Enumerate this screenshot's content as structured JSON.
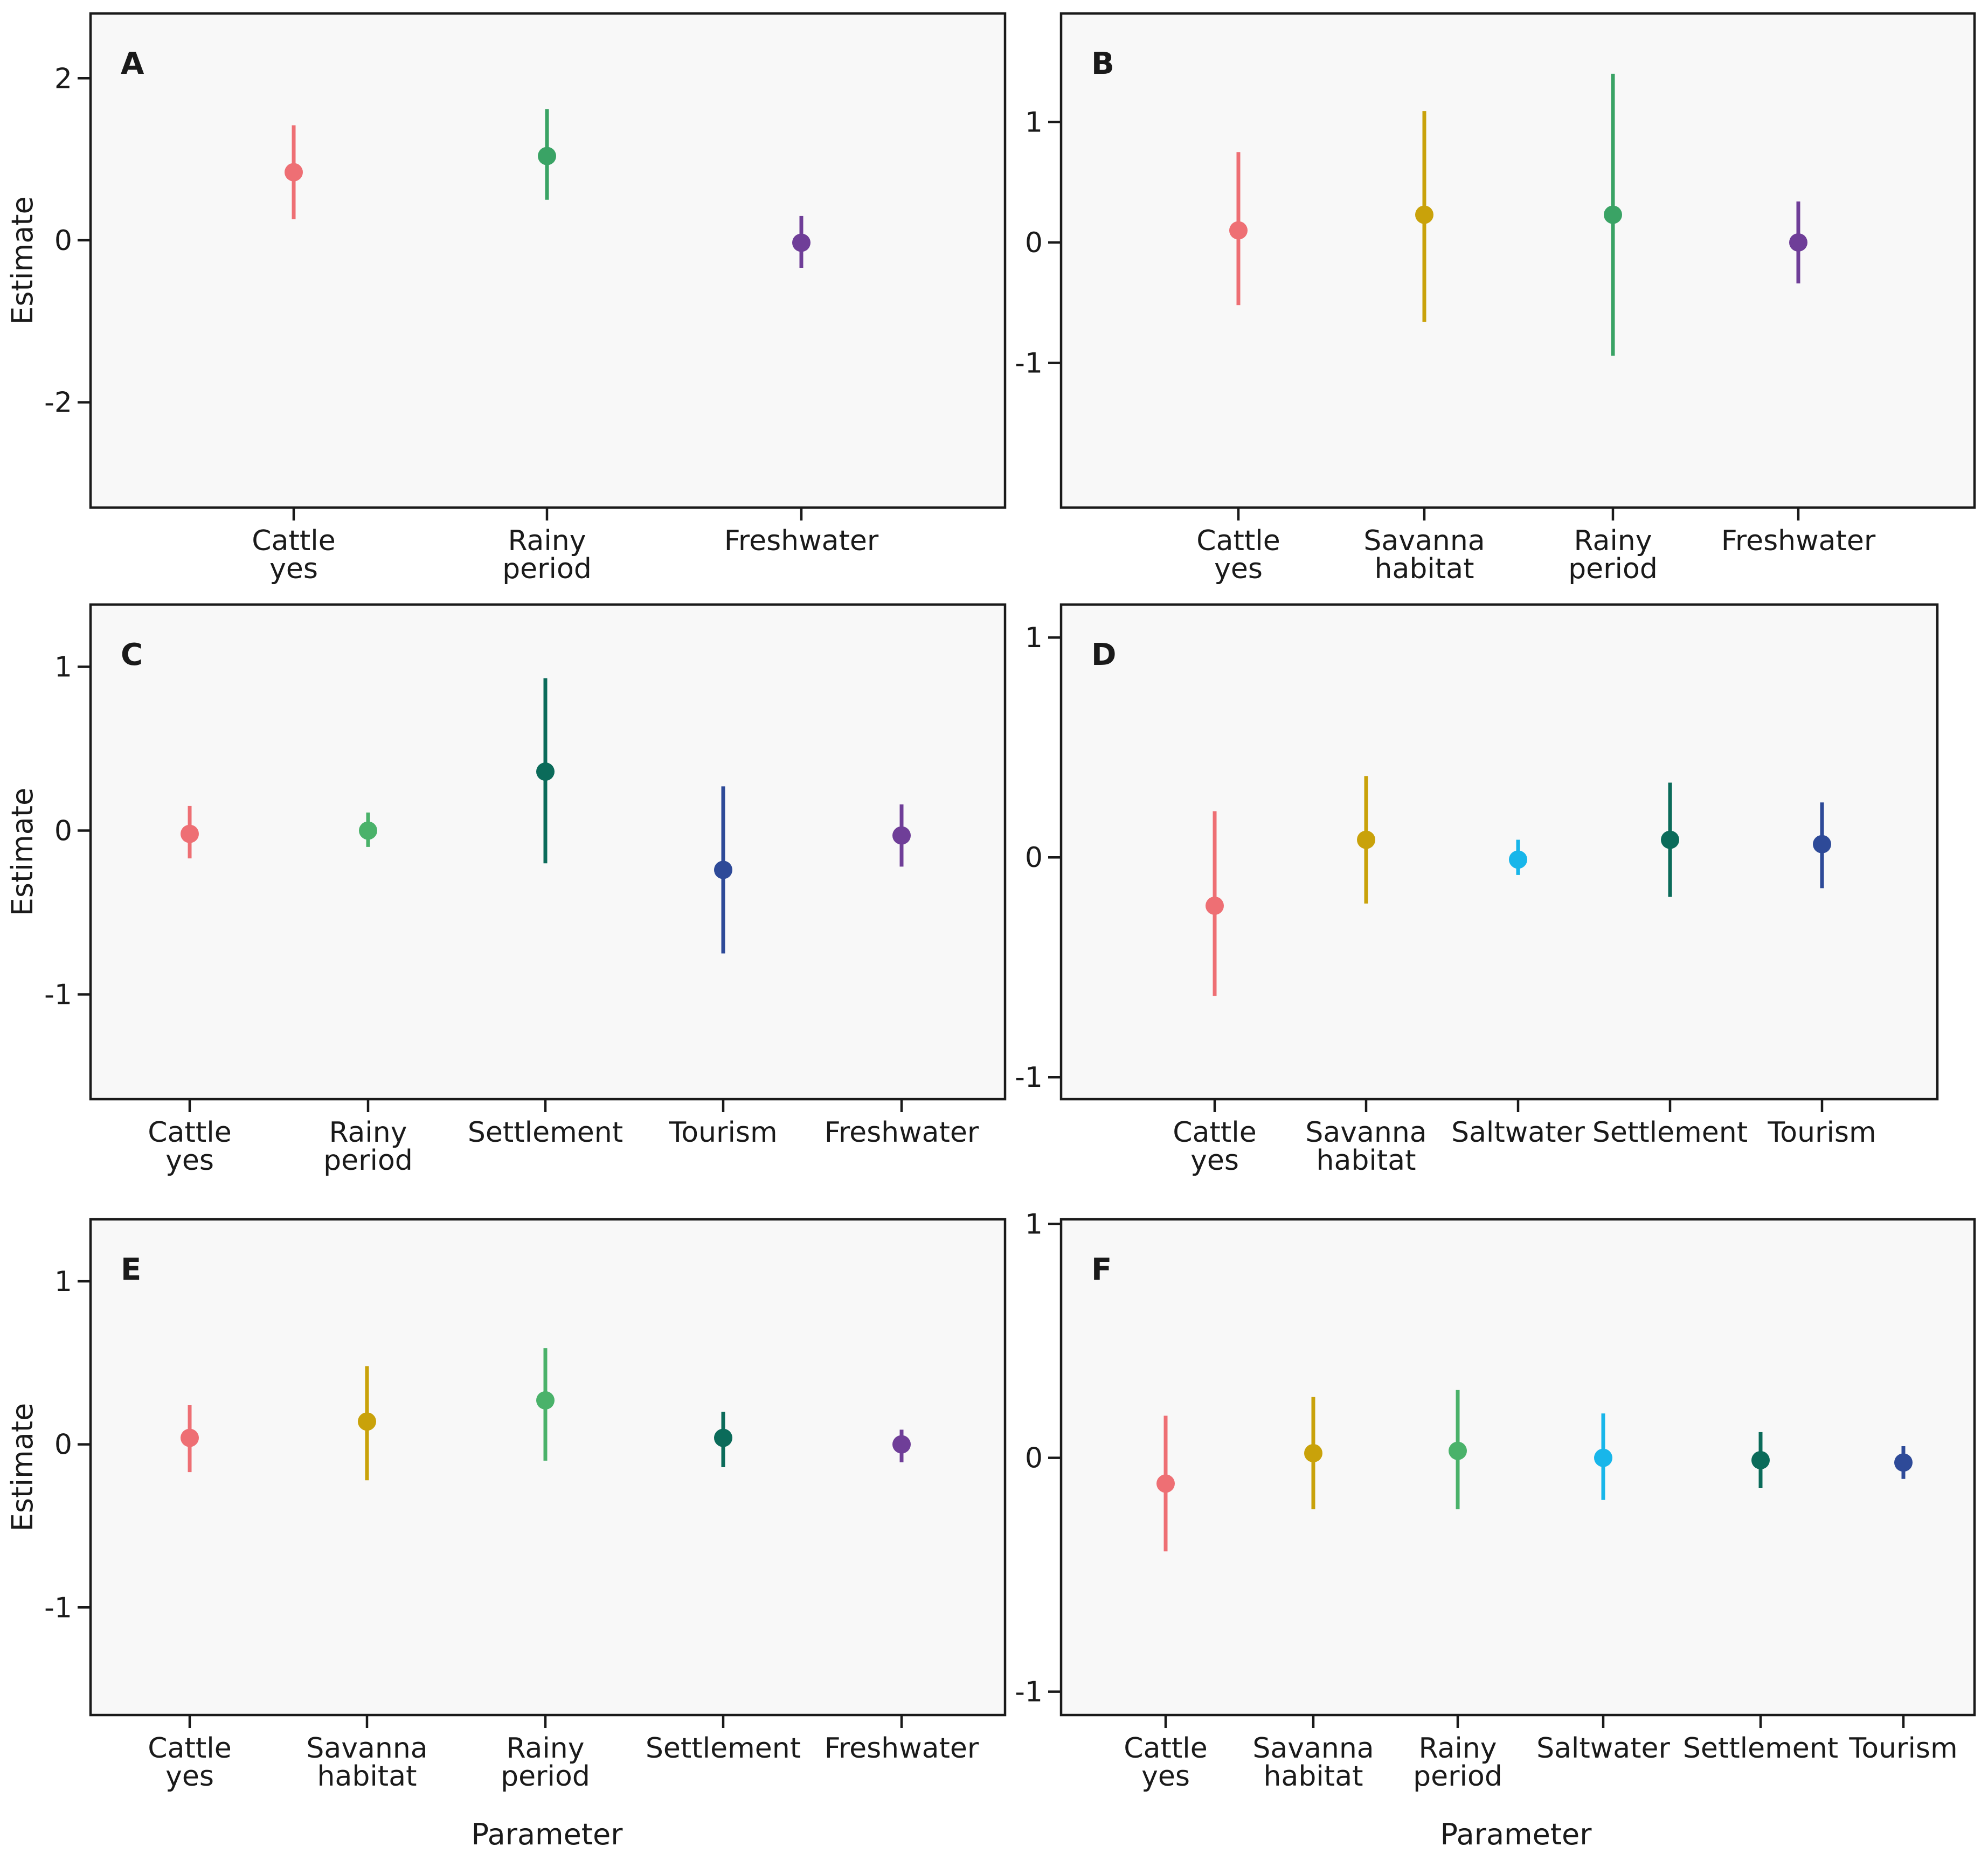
{
  "chart_data": [
    {
      "type": "scatter",
      "panel": "A",
      "ylabel": "Estimate",
      "xlabel": "",
      "ylim": [
        -3.3,
        2.8
      ],
      "yticks": [
        {
          "value": 2,
          "label": "2"
        },
        {
          "value": 0,
          "label": "0"
        },
        {
          "value": -2,
          "label": "-2"
        }
      ],
      "points": [
        {
          "label": [
            "Cattle",
            "yes"
          ],
          "estimate": 0.84,
          "lower": 0.26,
          "upper": 1.42,
          "color": "#ee6f74"
        },
        {
          "label": [
            "Rainy",
            "period"
          ],
          "estimate": 1.04,
          "lower": 0.5,
          "upper": 1.62,
          "color": "#3aa365"
        },
        {
          "label": [
            "Freshwater"
          ],
          "estimate": -0.03,
          "lower": -0.34,
          "upper": 0.3,
          "color": "#6f3e98"
        }
      ]
    },
    {
      "type": "scatter",
      "panel": "B",
      "ylabel": "",
      "xlabel": "",
      "ylim": [
        -2.2,
        1.9
      ],
      "yticks": [
        {
          "value": 1,
          "label": "1"
        },
        {
          "value": 0,
          "label": "0"
        },
        {
          "value": -1,
          "label": "-1"
        }
      ],
      "points": [
        {
          "label": [
            "Cattle",
            "yes"
          ],
          "estimate": 0.1,
          "lower": -0.52,
          "upper": 0.75,
          "color": "#ee6f74"
        },
        {
          "label": [
            "Savanna",
            "habitat"
          ],
          "estimate": 0.23,
          "lower": -0.66,
          "upper": 1.09,
          "color": "#c9a20a"
        },
        {
          "label": [
            "Rainy",
            "period"
          ],
          "estimate": 0.23,
          "lower": -0.94,
          "upper": 1.4,
          "color": "#3aa365"
        },
        {
          "label": [
            "Freshwater"
          ],
          "estimate": 0.0,
          "lower": -0.34,
          "upper": 0.34,
          "color": "#6f3e98"
        }
      ]
    },
    {
      "type": "scatter",
      "panel": "C",
      "ylabel": "Estimate",
      "xlabel": "",
      "ylim": [
        -1.64,
        1.38
      ],
      "yticks": [
        {
          "value": 1,
          "label": "1"
        },
        {
          "value": 0,
          "label": "0"
        },
        {
          "value": -1,
          "label": "-1"
        }
      ],
      "points": [
        {
          "label": [
            "Cattle",
            "yes"
          ],
          "estimate": -0.02,
          "lower": -0.17,
          "upper": 0.15,
          "color": "#ee6f74"
        },
        {
          "label": [
            "Rainy",
            "period"
          ],
          "estimate": 0.0,
          "lower": -0.1,
          "upper": 0.11,
          "color": "#4ab26a"
        },
        {
          "label": [
            "Settlement"
          ],
          "estimate": 0.36,
          "lower": -0.2,
          "upper": 0.93,
          "color": "#0b6b5a"
        },
        {
          "label": [
            "Tourism"
          ],
          "estimate": -0.24,
          "lower": -0.75,
          "upper": 0.27,
          "color": "#2e4a98"
        },
        {
          "label": [
            "Freshwater"
          ],
          "estimate": -0.03,
          "lower": -0.22,
          "upper": 0.16,
          "color": "#6f3e98"
        }
      ]
    },
    {
      "type": "scatter",
      "panel": "D",
      "ylabel": "",
      "xlabel": "",
      "ylim": [
        -1.1,
        1.15
      ],
      "yticks": [
        {
          "value": 1,
          "label": "1"
        },
        {
          "value": 0,
          "label": "0"
        },
        {
          "value": -1,
          "label": "-1"
        }
      ],
      "points": [
        {
          "label": [
            "Cattle",
            "yes"
          ],
          "estimate": -0.22,
          "lower": -0.63,
          "upper": 0.21,
          "color": "#ee6f74"
        },
        {
          "label": [
            "Savanna",
            "habitat"
          ],
          "estimate": 0.08,
          "lower": -0.21,
          "upper": 0.37,
          "color": "#c9a20a"
        },
        {
          "label": [
            "Saltwater"
          ],
          "estimate": -0.01,
          "lower": -0.08,
          "upper": 0.08,
          "color": "#18b6ea"
        },
        {
          "label": [
            "Settlement"
          ],
          "estimate": 0.08,
          "lower": -0.18,
          "upper": 0.34,
          "color": "#0b6b5a"
        },
        {
          "label": [
            "Tourism"
          ],
          "estimate": 0.06,
          "lower": -0.14,
          "upper": 0.25,
          "color": "#2e4a98"
        }
      ]
    },
    {
      "type": "scatter",
      "panel": "E",
      "ylabel": "Estimate",
      "xlabel": "Parameter",
      "ylim": [
        -1.66,
        1.38
      ],
      "yticks": [
        {
          "value": 1,
          "label": "1"
        },
        {
          "value": 0,
          "label": "0"
        },
        {
          "value": -1,
          "label": "-1"
        }
      ],
      "points": [
        {
          "label": [
            "Cattle",
            "yes"
          ],
          "estimate": 0.04,
          "lower": -0.17,
          "upper": 0.24,
          "color": "#ee6f74"
        },
        {
          "label": [
            "Savanna",
            "habitat"
          ],
          "estimate": 0.14,
          "lower": -0.22,
          "upper": 0.48,
          "color": "#c9a20a"
        },
        {
          "label": [
            "Rainy",
            "period"
          ],
          "estimate": 0.27,
          "lower": -0.1,
          "upper": 0.59,
          "color": "#4ab26a"
        },
        {
          "label": [
            "Settlement"
          ],
          "estimate": 0.04,
          "lower": -0.14,
          "upper": 0.2,
          "color": "#0b6b5a"
        },
        {
          "label": [
            "Freshwater"
          ],
          "estimate": 0.0,
          "lower": -0.11,
          "upper": 0.09,
          "color": "#6f3e98"
        }
      ]
    },
    {
      "type": "scatter",
      "panel": "F",
      "ylabel": "",
      "xlabel": "Parameter",
      "ylim": [
        -1.1,
        1.02
      ],
      "yticks": [
        {
          "value": 1,
          "label": "1"
        },
        {
          "value": 0,
          "label": "0"
        },
        {
          "value": -1,
          "label": "-1"
        }
      ],
      "points": [
        {
          "label": [
            "Cattle",
            "yes"
          ],
          "estimate": -0.11,
          "lower": -0.4,
          "upper": 0.18,
          "color": "#ee6f74"
        },
        {
          "label": [
            "Savanna",
            "habitat"
          ],
          "estimate": 0.02,
          "lower": -0.22,
          "upper": 0.26,
          "color": "#c9a20a"
        },
        {
          "label": [
            "Rainy",
            "period"
          ],
          "estimate": 0.03,
          "lower": -0.22,
          "upper": 0.29,
          "color": "#4ab26a"
        },
        {
          "label": [
            "Saltwater"
          ],
          "estimate": 0.0,
          "lower": -0.18,
          "upper": 0.19,
          "color": "#18b6ea"
        },
        {
          "label": [
            "Settlement"
          ],
          "estimate": -0.01,
          "lower": -0.13,
          "upper": 0.11,
          "color": "#0b6b5a"
        },
        {
          "label": [
            "Tourism"
          ],
          "estimate": -0.02,
          "lower": -0.09,
          "upper": 0.05,
          "color": "#2e4a98"
        }
      ]
    }
  ]
}
